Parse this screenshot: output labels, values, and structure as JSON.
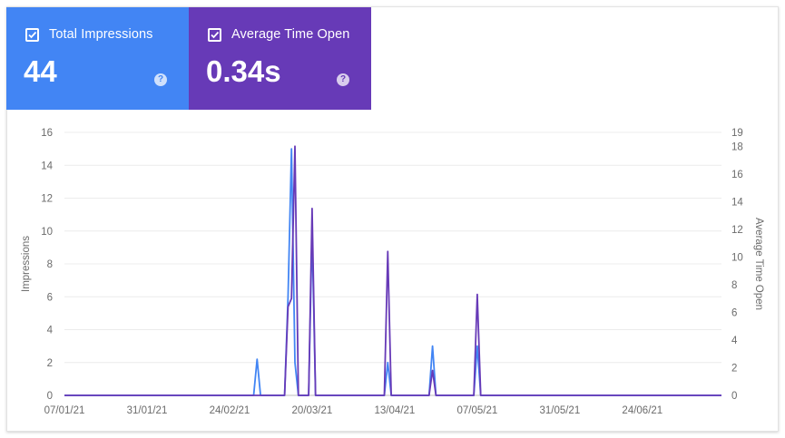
{
  "metrics": [
    {
      "label": "Total Impressions",
      "value": "44",
      "help": "?",
      "color": "#4285f4",
      "checked": true
    },
    {
      "label": "Average Time Open",
      "value": "0.34s",
      "help": "?",
      "color": "#673ab7",
      "checked": true
    }
  ],
  "chart_data": {
    "type": "line",
    "x_tick_labels": [
      "07/01/21",
      "31/01/21",
      "24/02/21",
      "20/03/21",
      "13/04/21",
      "07/05/21",
      "31/05/21",
      "24/06/21"
    ],
    "x_start": "07/01/21",
    "x_end": "17/07/21",
    "y_left": {
      "label": "Impressions",
      "ticks": [
        0,
        2,
        4,
        6,
        8,
        10,
        12,
        14,
        16
      ],
      "max": 16
    },
    "y_right": {
      "label": "Average Time Open",
      "ticks": [
        0,
        2,
        4,
        6,
        8,
        10,
        12,
        14,
        16,
        18,
        19
      ],
      "max": 19
    },
    "grid": true,
    "series": [
      {
        "color": "#4285f4",
        "axis": "left",
        "points": [
          [
            "07/01/21",
            0
          ],
          [
            "03/03/21",
            0
          ],
          [
            "04/03/21",
            2.2
          ],
          [
            "05/03/21",
            0
          ],
          [
            "12/03/21",
            0
          ],
          [
            "13/03/21",
            6
          ],
          [
            "14/03/21",
            15
          ],
          [
            "15/03/21",
            2
          ],
          [
            "16/03/21",
            0
          ],
          [
            "19/03/21",
            0
          ],
          [
            "20/03/21",
            10
          ],
          [
            "21/03/21",
            0
          ],
          [
            "10/04/21",
            0
          ],
          [
            "11/04/21",
            2
          ],
          [
            "12/04/21",
            0
          ],
          [
            "23/04/21",
            0
          ],
          [
            "24/04/21",
            3
          ],
          [
            "25/04/21",
            0
          ],
          [
            "06/05/21",
            0
          ],
          [
            "07/05/21",
            3
          ],
          [
            "08/05/21",
            0
          ],
          [
            "17/07/21",
            0
          ]
        ]
      },
      {
        "color": "#673ab7",
        "axis": "right",
        "points": [
          [
            "07/01/21",
            0
          ],
          [
            "12/03/21",
            0
          ],
          [
            "13/03/21",
            6.4
          ],
          [
            "14/03/21",
            7
          ],
          [
            "15/03/21",
            18
          ],
          [
            "16/03/21",
            0
          ],
          [
            "19/03/21",
            0
          ],
          [
            "20/03/21",
            13.5
          ],
          [
            "21/03/21",
            0
          ],
          [
            "10/04/21",
            0
          ],
          [
            "11/04/21",
            10.4
          ],
          [
            "12/04/21",
            0
          ],
          [
            "23/04/21",
            0
          ],
          [
            "24/04/21",
            1.8
          ],
          [
            "25/04/21",
            0
          ],
          [
            "06/05/21",
            0
          ],
          [
            "07/05/21",
            7.3
          ],
          [
            "08/05/21",
            0
          ],
          [
            "17/07/21",
            0
          ]
        ]
      }
    ]
  }
}
